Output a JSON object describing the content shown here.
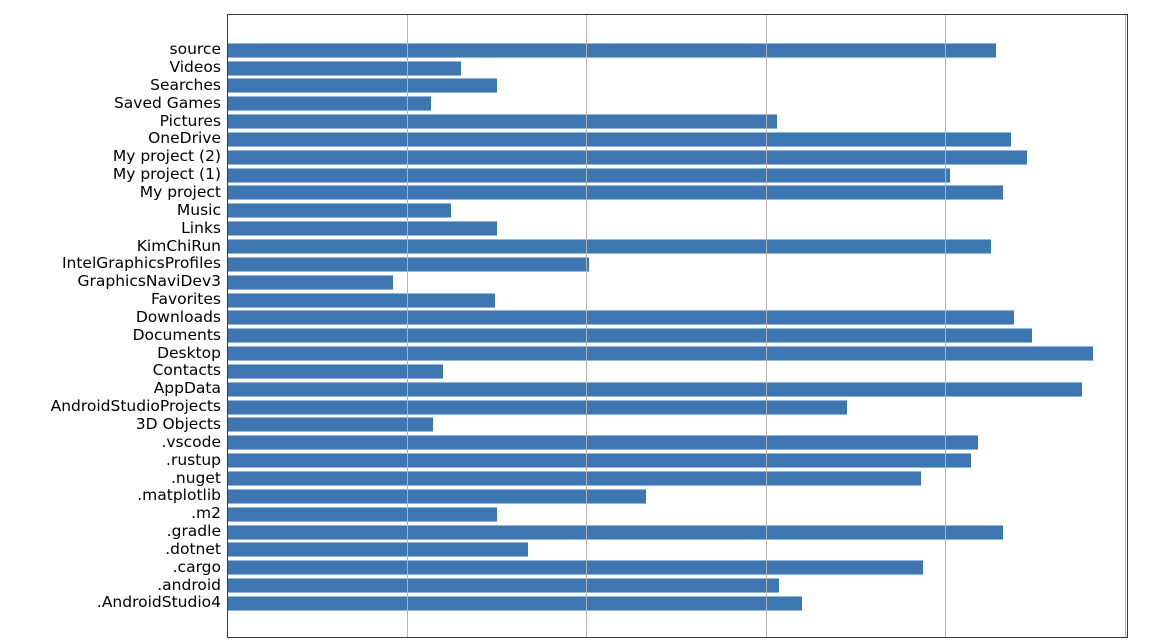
{
  "chart_data": {
    "type": "bar",
    "orientation": "horizontal",
    "title": "",
    "xlabel": "",
    "ylabel": "",
    "categories": [
      "source",
      "Videos",
      "Searches",
      "Saved Games",
      "Pictures",
      "OneDrive",
      "My project (2)",
      "My project (1)",
      "My project",
      "Music",
      "Links",
      "KimChiRun",
      "IntelGraphicsProfiles",
      "GraphicsNaviDev3",
      "Favorites",
      "Downloads",
      "Documents",
      "Desktop",
      "Contacts",
      "AppData",
      "AndroidStudioProjects",
      "3D Objects",
      ".vscode",
      ".rustup",
      ".nuget",
      ".matplotlib",
      ".m2",
      ".gradle",
      ".dotnet",
      ".cargo",
      ".android",
      ".AndroidStudio4"
    ],
    "values": [
      4.28,
      1.3,
      1.5,
      1.13,
      3.06,
      4.36,
      4.45,
      4.02,
      4.32,
      1.24,
      1.5,
      4.25,
      2.01,
      0.92,
      1.49,
      4.38,
      4.48,
      4.82,
      1.2,
      4.76,
      3.45,
      1.14,
      4.18,
      4.14,
      3.86,
      2.33,
      1.5,
      4.32,
      1.67,
      3.87,
      3.07,
      3.2
    ],
    "value_units": "gridline-units (x tick labels cropped out of screenshot, values estimated from gridlines)",
    "xlim": [
      0,
      5.02
    ],
    "xticks": [
      1,
      2,
      3,
      4,
      5
    ],
    "xtick_labels_visible": false,
    "grid": "vertical",
    "grid_above_bars": true,
    "legend": "none",
    "bar_color": "#3d76b0",
    "bar_edge_color": "#93b5da",
    "grid_color": "#b3b3b3",
    "spine_color": "#3a3a3a",
    "background": "#ffffff"
  }
}
